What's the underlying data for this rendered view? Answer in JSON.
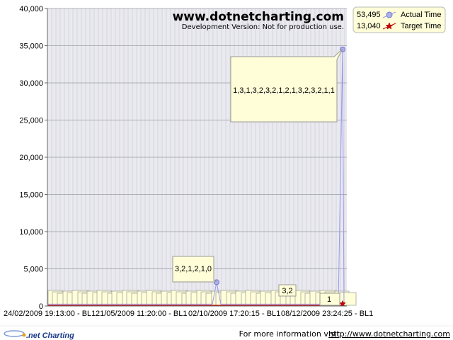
{
  "watermark": {
    "title": "www.dotnetcharting.com",
    "subtitle": "Development Version: Not for production use."
  },
  "legend": {
    "position": "top-right",
    "items": [
      {
        "value": "53,495",
        "label": "Actual Time",
        "color": "#9999ee",
        "marker": "circle"
      },
      {
        "value": "13,040",
        "label": "Target Time",
        "color": "#cc0000",
        "marker": "star"
      }
    ]
  },
  "footer": {
    "logo": ".net Charting",
    "text": "For more information visit ",
    "link": "http://www.dotnetcharting.com"
  },
  "colors": {
    "plot_background": "#e9e9ef",
    "gridline": "#c8c8d0",
    "annotation_fill": "#fffed8",
    "annotation_border": "#999999",
    "actual_series": "#9999ee",
    "target_series": "#cc0000"
  },
  "chart_data": {
    "type": "line",
    "title": "",
    "xlabel": "",
    "ylabel": "",
    "ylim": [
      0,
      40000
    ],
    "y_ticks": [
      "0",
      "5,000",
      "10,000",
      "15,000",
      "20,000",
      "25,000",
      "30,000",
      "35,000",
      "40,000"
    ],
    "x_tick_labels": [
      "24/02/2009 19:13:00 - BL1",
      "21/05/2009 11:20:00 - BL1",
      "02/10/2009 17:20:15 - BL1",
      "08/12/2009 23:24:25 - BL1"
    ],
    "grid": true,
    "series": [
      {
        "name": "Actual Time",
        "highlighted_points": [
          {
            "value": 3200,
            "annotation": "3,2,1,2,1,0"
          },
          {
            "value": 34500,
            "annotation": "1,3,1,3,2,3,2,1,2,1,3,2,3,2,1,1"
          }
        ]
      },
      {
        "name": "Target Time",
        "highlighted_points": [
          {
            "value": 300
          }
        ]
      }
    ],
    "other_visible_annotations": [
      "3,2",
      "1"
    ]
  }
}
